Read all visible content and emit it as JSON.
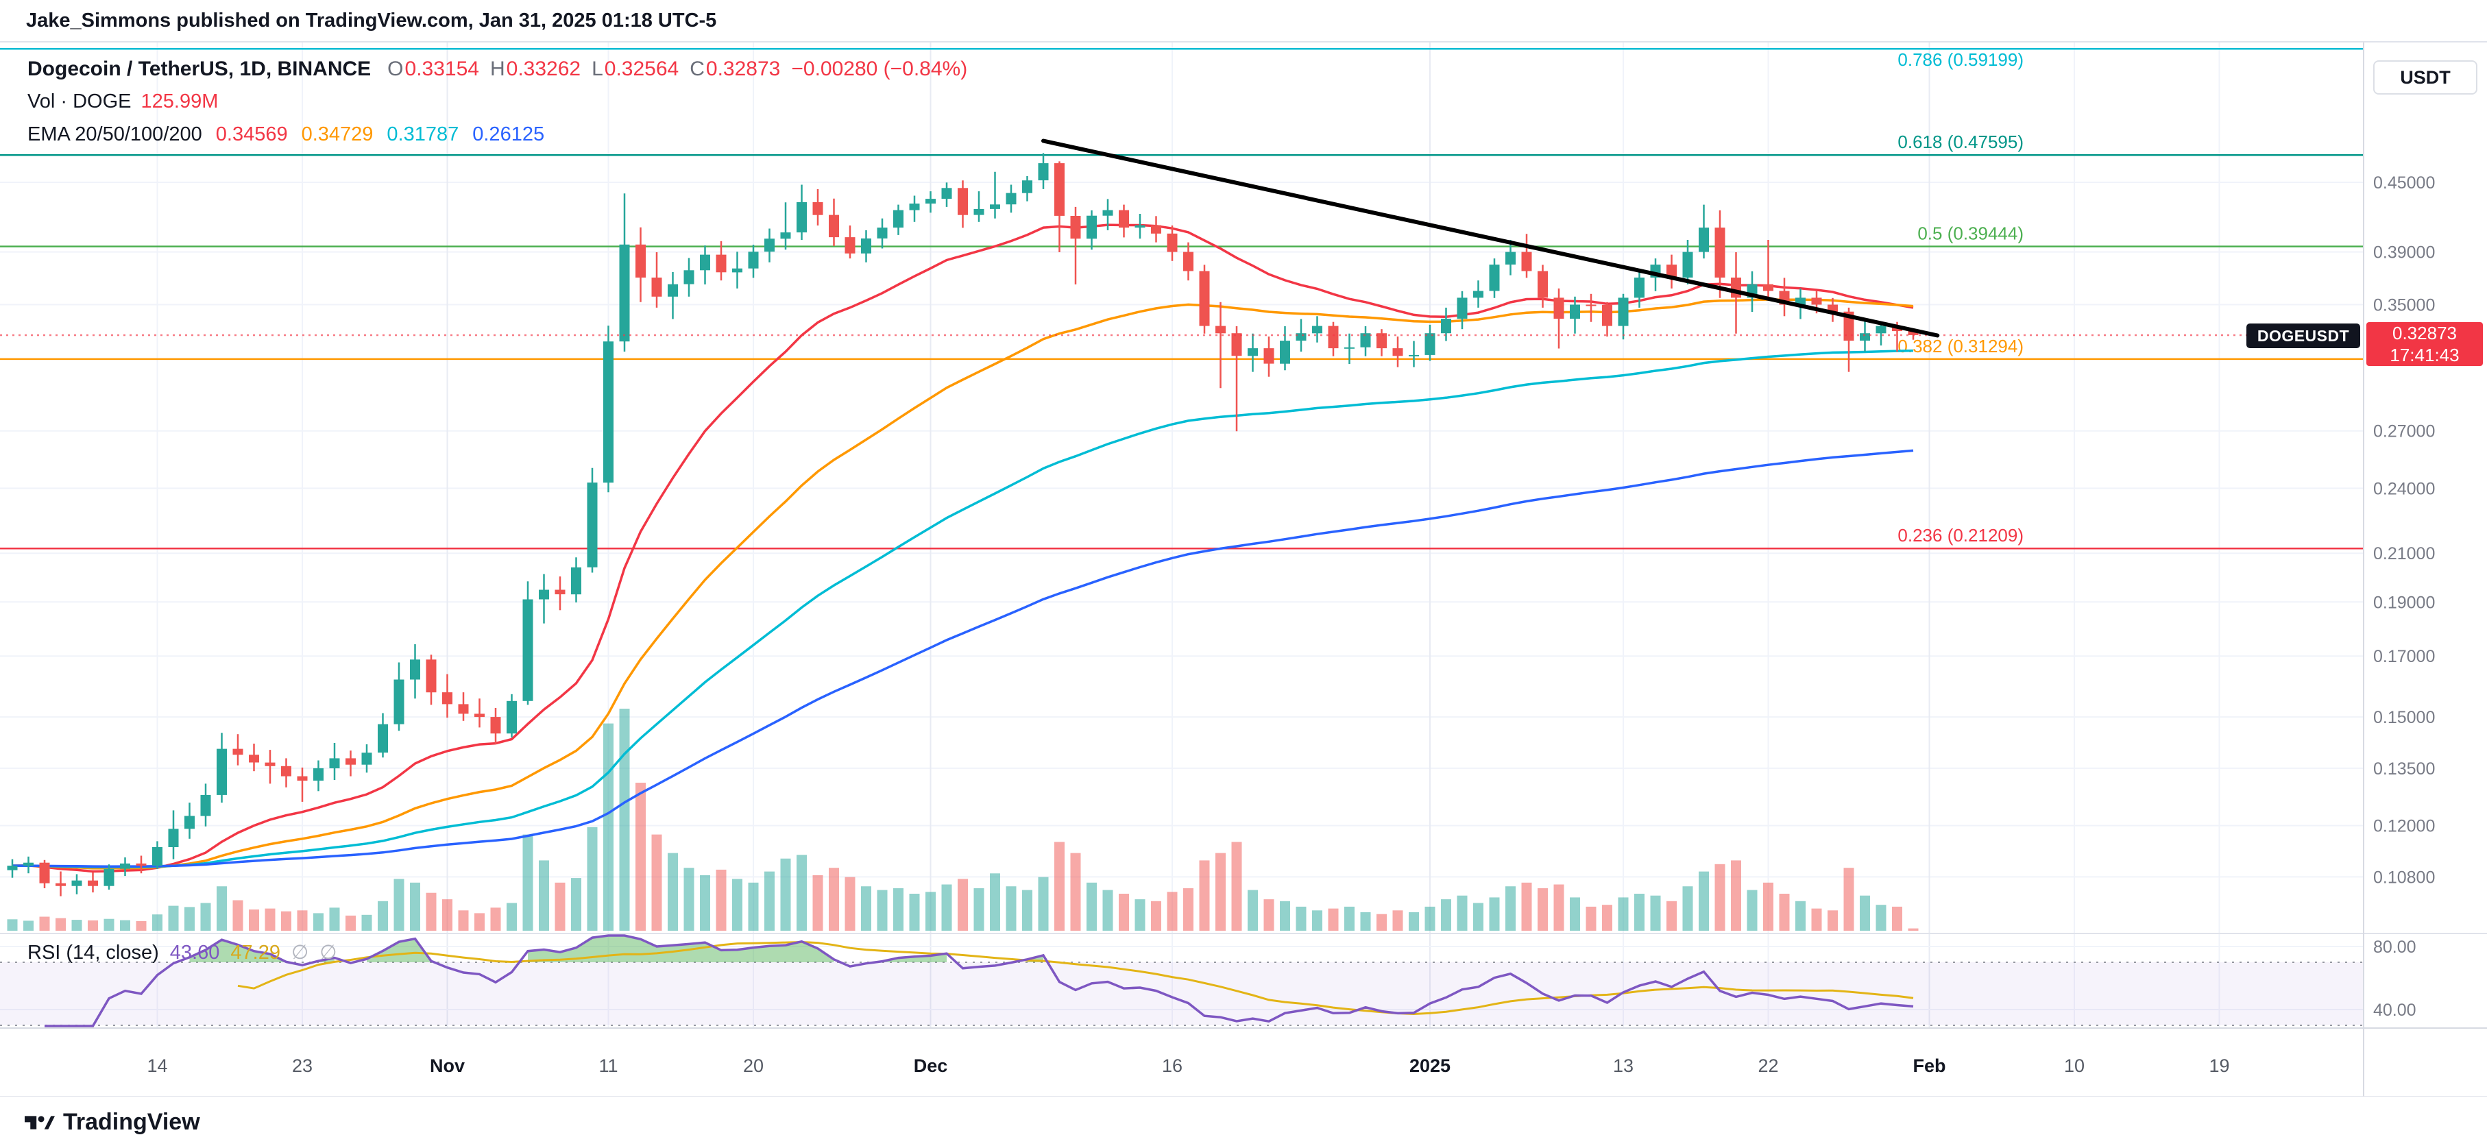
{
  "attribution": "Jake_Simmons published on TradingView.com, Jan 31, 2025 01:18 UTC-5",
  "header": {
    "title": "Dogecoin / TetherUS, 1D, BINANCE",
    "ohlc": [
      {
        "k": "O",
        "v": "0.33154"
      },
      {
        "k": "H",
        "v": "0.33262"
      },
      {
        "k": "L",
        "v": "0.32564"
      },
      {
        "k": "C",
        "v": "0.32873"
      }
    ],
    "change": "−0.00280 (−0.84%)",
    "vol_label": "Vol · DOGE",
    "vol_value": "125.99M",
    "ema_label": "EMA 20/50/100/200",
    "ema_values": [
      {
        "v": "0.34569",
        "color": "#f23645"
      },
      {
        "v": "0.34729",
        "color": "#ff9800"
      },
      {
        "v": "0.31787",
        "color": "#00bcd4"
      },
      {
        "v": "0.26125",
        "color": "#2962ff"
      }
    ]
  },
  "price_axis": {
    "currency": "USDT",
    "ticks": [
      "0.45000",
      "0.39000",
      "0.35000",
      "0.27000",
      "0.24000",
      "0.21000",
      "0.19000",
      "0.17000",
      "0.15000",
      "0.13500",
      "0.12000",
      "0.10800"
    ],
    "rsi_ticks": [
      "80.00",
      "40.00"
    ],
    "last_price": "0.32873",
    "countdown": "17:41:43",
    "symbol_chip": "DOGEUSDT"
  },
  "rsi_legend": {
    "title": "RSI (14, close)",
    "value": "43.60",
    "ma_value": "47.29",
    "hidden_1": "∅",
    "hidden_2": "∅"
  },
  "footer": {
    "brand": "TradingView"
  },
  "chart_data": {
    "type": "candlestick",
    "title": "Dogecoin / TetherUS, 1D, BINANCE",
    "symbol": "DOGEUSDT",
    "exchange": "BINANCE",
    "interval": "1D",
    "scale": "log",
    "start_date": "2024-10-05",
    "ylim": [
      0.1,
      0.62
    ],
    "up_color": "#26a69a",
    "down_color": "#ef5350",
    "volume": {
      "up_color": "rgba(38,166,154,0.5)",
      "down_color": "rgba(239,83,80,0.5)"
    },
    "price_tick_values": [
      0.45,
      0.39,
      0.35,
      0.27,
      0.24,
      0.21,
      0.19,
      0.17,
      0.15,
      0.135,
      0.12,
      0.108
    ],
    "x_labels": [
      {
        "label": "14",
        "i": 9
      },
      {
        "label": "23",
        "i": 18
      },
      {
        "label": "Nov",
        "i": 27,
        "major": true
      },
      {
        "label": "11",
        "i": 37
      },
      {
        "label": "20",
        "i": 46
      },
      {
        "label": "Dec",
        "i": 57,
        "major": true
      },
      {
        "label": "16",
        "i": 72
      },
      {
        "label": "2025",
        "i": 88,
        "major": true
      },
      {
        "label": "13",
        "i": 100
      },
      {
        "label": "22",
        "i": 109
      },
      {
        "label": "Feb",
        "i": 119,
        "major": true
      },
      {
        "label": "10",
        "i": 128
      },
      {
        "label": "19",
        "i": 137
      }
    ],
    "fib_levels": [
      {
        "label": "0.786 (0.59199)",
        "ratio": 0.786,
        "price": 0.59199,
        "color": "#00bcd4"
      },
      {
        "label": "0.618 (0.47595)",
        "ratio": 0.618,
        "price": 0.47595,
        "color": "#009688"
      },
      {
        "label": "0.5 (0.39444)",
        "ratio": 0.5,
        "price": 0.39444,
        "color": "#4caf50"
      },
      {
        "label": "0.382 (0.31294)",
        "ratio": 0.382,
        "price": 0.31294,
        "color": "#ff9800"
      },
      {
        "label": "0.236 (0.21209)",
        "ratio": 0.236,
        "price": 0.21209,
        "color": "#f23645"
      }
    ],
    "last_price": 0.32873,
    "trendline": {
      "from": {
        "i": 64,
        "price": 0.49
      },
      "to": {
        "i": 119.5,
        "price": 0.3285
      },
      "color": "#000000"
    },
    "emas": [
      {
        "period": 20,
        "color": "#f23645"
      },
      {
        "period": 50,
        "color": "#ff9800"
      },
      {
        "period": 100,
        "color": "#00bcd4"
      },
      {
        "period": 200,
        "color": "#2962ff"
      }
    ],
    "rsi": {
      "period": 14,
      "ma_period": 14,
      "upper_band": 70,
      "lower_band": 30,
      "line_color": "#7e57c2",
      "ma_color": "#e3b416",
      "band_fill": "rgba(126,87,194,0.07)",
      "overbought_fill": "rgba(76,175,80,0.45)"
    },
    "candles": [
      [
        0.1095,
        0.112,
        0.1078,
        0.1105,
        620
      ],
      [
        0.1105,
        0.1126,
        0.1088,
        0.1112,
        540
      ],
      [
        0.1112,
        0.1118,
        0.1055,
        0.1066,
        760
      ],
      [
        0.1066,
        0.1092,
        0.1038,
        0.106,
        680
      ],
      [
        0.106,
        0.1086,
        0.1042,
        0.1072,
        590
      ],
      [
        0.1072,
        0.109,
        0.1046,
        0.106,
        560
      ],
      [
        0.106,
        0.1108,
        0.1052,
        0.1098,
        640
      ],
      [
        0.1098,
        0.1124,
        0.1082,
        0.111,
        570
      ],
      [
        0.111,
        0.1128,
        0.1088,
        0.1105,
        520
      ],
      [
        0.1105,
        0.1162,
        0.1098,
        0.1148,
        880
      ],
      [
        0.1148,
        0.1238,
        0.112,
        0.1192,
        1350
      ],
      [
        0.1192,
        0.1258,
        0.1168,
        0.1224,
        1280
      ],
      [
        0.1224,
        0.1308,
        0.1198,
        0.1278,
        1500
      ],
      [
        0.1278,
        0.1452,
        0.1258,
        0.1405,
        2400
      ],
      [
        0.1405,
        0.1448,
        0.1358,
        0.1388,
        1650
      ],
      [
        0.1388,
        0.142,
        0.1342,
        0.1366,
        1150
      ],
      [
        0.1366,
        0.1402,
        0.1308,
        0.1356,
        1200
      ],
      [
        0.1356,
        0.1378,
        0.1298,
        0.1328,
        1050
      ],
      [
        0.1328,
        0.1352,
        0.126,
        0.1316,
        1100
      ],
      [
        0.1316,
        0.1372,
        0.1288,
        0.135,
        950
      ],
      [
        0.135,
        0.1422,
        0.1318,
        0.1378,
        1250
      ],
      [
        0.1378,
        0.14,
        0.1328,
        0.136,
        820
      ],
      [
        0.136,
        0.1418,
        0.1338,
        0.1394,
        860
      ],
      [
        0.1394,
        0.1512,
        0.138,
        0.1478,
        1600
      ],
      [
        0.1478,
        0.1678,
        0.1458,
        0.162,
        2800
      ],
      [
        0.162,
        0.1742,
        0.1558,
        0.1688,
        2600
      ],
      [
        0.1688,
        0.1705,
        0.1538,
        0.1578,
        2050
      ],
      [
        0.1578,
        0.1638,
        0.1498,
        0.154,
        1700
      ],
      [
        0.154,
        0.1578,
        0.1488,
        0.151,
        1100
      ],
      [
        0.151,
        0.1558,
        0.1468,
        0.15,
        950
      ],
      [
        0.15,
        0.1528,
        0.1418,
        0.145,
        1250
      ],
      [
        0.145,
        0.1572,
        0.1438,
        0.155,
        1500
      ],
      [
        0.155,
        0.1982,
        0.1538,
        0.191,
        5200
      ],
      [
        0.191,
        0.2012,
        0.1818,
        0.1948,
        3800
      ],
      [
        0.1948,
        0.2002,
        0.1868,
        0.193,
        2600
      ],
      [
        0.193,
        0.2082,
        0.1898,
        0.204,
        2850
      ],
      [
        0.204,
        0.2502,
        0.2018,
        0.2428,
        5600
      ],
      [
        0.2428,
        0.3352,
        0.238,
        0.3245,
        11200
      ],
      [
        0.3245,
        0.4398,
        0.3178,
        0.396,
        12000
      ],
      [
        0.396,
        0.4102,
        0.3518,
        0.37,
        8000
      ],
      [
        0.37,
        0.3898,
        0.3478,
        0.3558,
        5200
      ],
      [
        0.3558,
        0.3742,
        0.3398,
        0.365,
        4200
      ],
      [
        0.365,
        0.3852,
        0.3558,
        0.3756,
        3400
      ],
      [
        0.3756,
        0.3952,
        0.3648,
        0.3878,
        3000
      ],
      [
        0.3878,
        0.3988,
        0.3678,
        0.374,
        3300
      ],
      [
        0.374,
        0.3902,
        0.3618,
        0.377,
        2800
      ],
      [
        0.377,
        0.3958,
        0.3698,
        0.3902,
        2600
      ],
      [
        0.3902,
        0.4092,
        0.3818,
        0.4008,
        3200
      ],
      [
        0.4008,
        0.4318,
        0.3918,
        0.406,
        3900
      ],
      [
        0.406,
        0.4478,
        0.3998,
        0.432,
        4100
      ],
      [
        0.432,
        0.4438,
        0.4118,
        0.4208,
        3000
      ],
      [
        0.4208,
        0.4352,
        0.3948,
        0.402,
        3400
      ],
      [
        0.402,
        0.4118,
        0.3848,
        0.3888,
        2900
      ],
      [
        0.3888,
        0.4078,
        0.3818,
        0.401,
        2400
      ],
      [
        0.401,
        0.4178,
        0.3928,
        0.41,
        2200
      ],
      [
        0.41,
        0.4298,
        0.4038,
        0.425,
        2300
      ],
      [
        0.425,
        0.4378,
        0.4148,
        0.4308,
        2000
      ],
      [
        0.4308,
        0.4418,
        0.4228,
        0.435,
        2100
      ],
      [
        0.435,
        0.4498,
        0.4278,
        0.4448,
        2500
      ],
      [
        0.4448,
        0.4518,
        0.4098,
        0.4208,
        2800
      ],
      [
        0.4208,
        0.4418,
        0.4148,
        0.426,
        2300
      ],
      [
        0.426,
        0.4598,
        0.4178,
        0.43,
        3100
      ],
      [
        0.43,
        0.4478,
        0.4228,
        0.4402,
        2400
      ],
      [
        0.4402,
        0.4558,
        0.4328,
        0.4518,
        2200
      ],
      [
        0.4518,
        0.4778,
        0.4438,
        0.468,
        2900
      ],
      [
        0.468,
        0.4698,
        0.3898,
        0.42,
        4800
      ],
      [
        0.42,
        0.4278,
        0.3648,
        0.4008,
        4200
      ],
      [
        0.4008,
        0.4248,
        0.3918,
        0.4202,
        2600
      ],
      [
        0.4202,
        0.4348,
        0.4078,
        0.425,
        2200
      ],
      [
        0.425,
        0.4298,
        0.4018,
        0.41,
        2000
      ],
      [
        0.41,
        0.4218,
        0.4008,
        0.412,
        1700
      ],
      [
        0.412,
        0.4198,
        0.3978,
        0.405,
        1600
      ],
      [
        0.405,
        0.4118,
        0.3828,
        0.39,
        2100
      ],
      [
        0.39,
        0.3978,
        0.3678,
        0.375,
        2300
      ],
      [
        0.375,
        0.3798,
        0.3298,
        0.335,
        3800
      ],
      [
        0.335,
        0.3518,
        0.2948,
        0.33,
        4200
      ],
      [
        0.33,
        0.3348,
        0.2698,
        0.315,
        4800
      ],
      [
        0.315,
        0.3298,
        0.3048,
        0.32,
        2200
      ],
      [
        0.32,
        0.3278,
        0.3018,
        0.31,
        1700
      ],
      [
        0.31,
        0.3348,
        0.3058,
        0.325,
        1600
      ],
      [
        0.325,
        0.3398,
        0.3178,
        0.33,
        1300
      ],
      [
        0.33,
        0.3418,
        0.3238,
        0.335,
        1100
      ],
      [
        0.335,
        0.3378,
        0.3148,
        0.32,
        1200
      ],
      [
        0.32,
        0.3298,
        0.3098,
        0.3206,
        1300
      ],
      [
        0.3206,
        0.3348,
        0.3148,
        0.33,
        1000
      ],
      [
        0.33,
        0.3328,
        0.3148,
        0.32,
        900
      ],
      [
        0.32,
        0.3278,
        0.3078,
        0.315,
        1100
      ],
      [
        0.315,
        0.3248,
        0.3078,
        0.3156,
        1000
      ],
      [
        0.3156,
        0.3358,
        0.3118,
        0.33,
        1300
      ],
      [
        0.33,
        0.3478,
        0.3248,
        0.34,
        1700
      ],
      [
        0.34,
        0.3598,
        0.3328,
        0.355,
        1900
      ],
      [
        0.355,
        0.3678,
        0.3478,
        0.36,
        1500
      ],
      [
        0.36,
        0.3848,
        0.3548,
        0.38,
        1800
      ],
      [
        0.38,
        0.3998,
        0.3718,
        0.39,
        2400
      ],
      [
        0.39,
        0.4048,
        0.3698,
        0.375,
        2600
      ],
      [
        0.375,
        0.3798,
        0.3478,
        0.355,
        2300
      ],
      [
        0.355,
        0.3618,
        0.3198,
        0.34,
        2500
      ],
      [
        0.34,
        0.3558,
        0.3298,
        0.35,
        1800
      ],
      [
        0.35,
        0.3578,
        0.3378,
        0.3498,
        1300
      ],
      [
        0.3498,
        0.3518,
        0.3278,
        0.335,
        1400
      ],
      [
        0.335,
        0.3578,
        0.3258,
        0.355,
        1800
      ],
      [
        0.355,
        0.3748,
        0.3478,
        0.37,
        2000
      ],
      [
        0.37,
        0.3848,
        0.3598,
        0.38,
        1900
      ],
      [
        0.38,
        0.3878,
        0.3618,
        0.37,
        1600
      ],
      [
        0.37,
        0.3998,
        0.3648,
        0.39,
        2400
      ],
      [
        0.39,
        0.4298,
        0.3848,
        0.41,
        3200
      ],
      [
        0.41,
        0.4248,
        0.3548,
        0.37,
        3600
      ],
      [
        0.37,
        0.3898,
        0.3298,
        0.355,
        3800
      ],
      [
        0.355,
        0.3748,
        0.3448,
        0.365,
        2200
      ],
      [
        0.365,
        0.3998,
        0.3548,
        0.36,
        2600
      ],
      [
        0.36,
        0.3698,
        0.3418,
        0.35,
        2000
      ],
      [
        0.35,
        0.3618,
        0.3398,
        0.355,
        1600
      ],
      [
        0.355,
        0.3598,
        0.3438,
        0.35,
        1200
      ],
      [
        0.35,
        0.3548,
        0.3378,
        0.345,
        1100
      ],
      [
        0.345,
        0.3478,
        0.3048,
        0.325,
        3400
      ],
      [
        0.325,
        0.3398,
        0.3178,
        0.33,
        1900
      ],
      [
        0.33,
        0.3378,
        0.3218,
        0.335,
        1400
      ],
      [
        0.335,
        0.3378,
        0.3178,
        0.3315,
        1300
      ],
      [
        0.33154,
        0.33262,
        0.32564,
        0.32873,
        126
      ]
    ]
  }
}
